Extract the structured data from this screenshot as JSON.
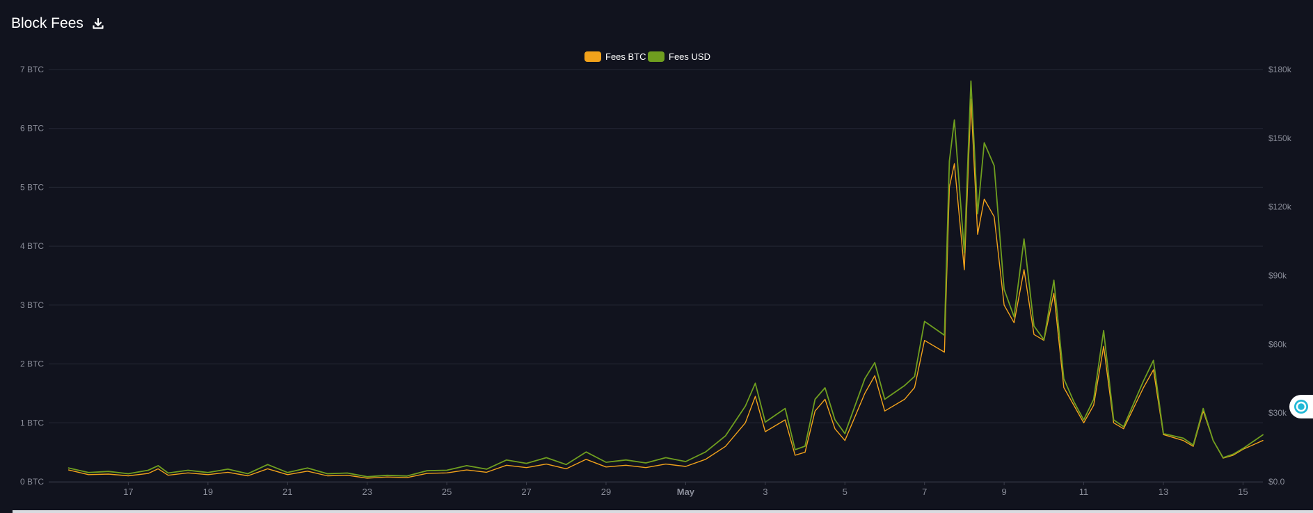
{
  "header": {
    "title": "Block Fees",
    "download_icon": "download-icon"
  },
  "widget": {
    "icon": "assistant-bubble-icon"
  },
  "chart_data": {
    "type": "line",
    "title": "Block Fees",
    "legend": {
      "placement": "top-center",
      "entries": [
        "Fees BTC",
        "Fees USD"
      ]
    },
    "colors": {
      "btc": "#f2a21b",
      "usd": "#6f9e1f",
      "background": "#11131e",
      "grid": "#252836",
      "tick_text": "#8a8d99"
    },
    "grid": true,
    "x_axis": {
      "range": [
        "2024-04-15",
        "2024-05-15"
      ],
      "tick_labels": [
        "17",
        "19",
        "21",
        "23",
        "25",
        "27",
        "29",
        "May",
        "3",
        "5",
        "7",
        "9",
        "11",
        "13",
        "15"
      ],
      "tick_dates": [
        "2024-04-17",
        "2024-04-19",
        "2024-04-21",
        "2024-04-23",
        "2024-04-25",
        "2024-04-27",
        "2024-04-29",
        "2024-05-01",
        "2024-05-03",
        "2024-05-05",
        "2024-05-07",
        "2024-05-09",
        "2024-05-11",
        "2024-05-13",
        "2024-05-15"
      ]
    },
    "y_left": {
      "range": [
        0,
        7
      ],
      "tick_labels": [
        "0 BTC",
        "1 BTC",
        "2 BTC",
        "3 BTC",
        "4 BTC",
        "5 BTC",
        "6 BTC",
        "7 BTC"
      ]
    },
    "y_right": {
      "range": [
        0,
        180000
      ],
      "tick_labels": [
        "$0.0",
        "$30k",
        "$60k",
        "$90k",
        "$120k",
        "$150k",
        "$180k"
      ]
    },
    "series": [
      {
        "name": "Fees BTC",
        "axis": "left",
        "unit": "BTC",
        "points": [
          [
            "2024-04-15 12:00",
            0.2
          ],
          [
            "2024-04-16 00:00",
            0.12
          ],
          [
            "2024-04-16 12:00",
            0.13
          ],
          [
            "2024-04-17 00:00",
            0.1
          ],
          [
            "2024-04-17 12:00",
            0.14
          ],
          [
            "2024-04-17 18:00",
            0.22
          ],
          [
            "2024-04-18 00:00",
            0.11
          ],
          [
            "2024-04-18 12:00",
            0.15
          ],
          [
            "2024-04-19 00:00",
            0.12
          ],
          [
            "2024-04-19 12:00",
            0.16
          ],
          [
            "2024-04-20 00:00",
            0.1
          ],
          [
            "2024-04-20 12:00",
            0.22
          ],
          [
            "2024-04-21 00:00",
            0.12
          ],
          [
            "2024-04-21 12:00",
            0.18
          ],
          [
            "2024-04-22 00:00",
            0.1
          ],
          [
            "2024-04-22 12:00",
            0.11
          ],
          [
            "2024-04-23 00:00",
            0.06
          ],
          [
            "2024-04-23 12:00",
            0.08
          ],
          [
            "2024-04-24 00:00",
            0.07
          ],
          [
            "2024-04-24 12:00",
            0.14
          ],
          [
            "2024-04-25 00:00",
            0.15
          ],
          [
            "2024-04-25 12:00",
            0.2
          ],
          [
            "2024-04-26 00:00",
            0.16
          ],
          [
            "2024-04-26 12:00",
            0.28
          ],
          [
            "2024-04-27 00:00",
            0.24
          ],
          [
            "2024-04-27 12:00",
            0.3
          ],
          [
            "2024-04-28 00:00",
            0.22
          ],
          [
            "2024-04-28 12:00",
            0.38
          ],
          [
            "2024-04-29 00:00",
            0.25
          ],
          [
            "2024-04-29 12:00",
            0.28
          ],
          [
            "2024-04-30 00:00",
            0.24
          ],
          [
            "2024-04-30 12:00",
            0.3
          ],
          [
            "2024-05-01 00:00",
            0.26
          ],
          [
            "2024-05-01 12:00",
            0.38
          ],
          [
            "2024-05-02 00:00",
            0.6
          ],
          [
            "2024-05-02 12:00",
            1.0
          ],
          [
            "2024-05-02 18:00",
            1.45
          ],
          [
            "2024-05-03 00:00",
            0.85
          ],
          [
            "2024-05-03 12:00",
            1.05
          ],
          [
            "2024-05-03 18:00",
            0.45
          ],
          [
            "2024-05-04 00:00",
            0.5
          ],
          [
            "2024-05-04 06:00",
            1.2
          ],
          [
            "2024-05-04 12:00",
            1.4
          ],
          [
            "2024-05-04 18:00",
            0.9
          ],
          [
            "2024-05-05 00:00",
            0.7
          ],
          [
            "2024-05-05 12:00",
            1.5
          ],
          [
            "2024-05-05 18:00",
            1.8
          ],
          [
            "2024-05-06 00:00",
            1.2
          ],
          [
            "2024-05-06 12:00",
            1.4
          ],
          [
            "2024-05-06 18:00",
            1.6
          ],
          [
            "2024-05-07 00:00",
            2.4
          ],
          [
            "2024-05-07 12:00",
            2.2
          ],
          [
            "2024-05-07 15:00",
            5.0
          ],
          [
            "2024-05-07 18:00",
            5.4
          ],
          [
            "2024-05-08 00:00",
            3.6
          ],
          [
            "2024-05-08 04:00",
            6.5
          ],
          [
            "2024-05-08 08:00",
            4.2
          ],
          [
            "2024-05-08 12:00",
            4.8
          ],
          [
            "2024-05-08 18:00",
            4.5
          ],
          [
            "2024-05-09 00:00",
            3.0
          ],
          [
            "2024-05-09 06:00",
            2.7
          ],
          [
            "2024-05-09 12:00",
            3.6
          ],
          [
            "2024-05-09 18:00",
            2.5
          ],
          [
            "2024-05-10 00:00",
            2.4
          ],
          [
            "2024-05-10 06:00",
            3.2
          ],
          [
            "2024-05-10 12:00",
            1.6
          ],
          [
            "2024-05-10 18:00",
            1.3
          ],
          [
            "2024-05-11 00:00",
            1.0
          ],
          [
            "2024-05-11 06:00",
            1.3
          ],
          [
            "2024-05-11 12:00",
            2.3
          ],
          [
            "2024-05-11 18:00",
            1.0
          ],
          [
            "2024-05-12 00:00",
            0.9
          ],
          [
            "2024-05-12 12:00",
            1.6
          ],
          [
            "2024-05-12 18:00",
            1.9
          ],
          [
            "2024-05-13 00:00",
            0.8
          ],
          [
            "2024-05-13 12:00",
            0.7
          ],
          [
            "2024-05-13 18:00",
            0.6
          ],
          [
            "2024-05-14 00:00",
            1.2
          ],
          [
            "2024-05-14 06:00",
            0.7
          ],
          [
            "2024-05-14 12:00",
            0.4
          ],
          [
            "2024-05-14 18:00",
            0.45
          ],
          [
            "2024-05-15 00:00",
            0.55
          ],
          [
            "2024-05-15 12:00",
            0.7
          ]
        ]
      },
      {
        "name": "Fees USD",
        "axis": "right",
        "unit": "USD",
        "points": [
          [
            "2024-04-15 12:00",
            6000
          ],
          [
            "2024-04-16 00:00",
            4000
          ],
          [
            "2024-04-16 12:00",
            4500
          ],
          [
            "2024-04-17 00:00",
            3500
          ],
          [
            "2024-04-17 12:00",
            5000
          ],
          [
            "2024-04-17 18:00",
            7000
          ],
          [
            "2024-04-18 00:00",
            3800
          ],
          [
            "2024-04-18 12:00",
            5000
          ],
          [
            "2024-04-19 00:00",
            4000
          ],
          [
            "2024-04-19 12:00",
            5500
          ],
          [
            "2024-04-20 00:00",
            3500
          ],
          [
            "2024-04-20 12:00",
            7500
          ],
          [
            "2024-04-21 00:00",
            4000
          ],
          [
            "2024-04-21 12:00",
            6000
          ],
          [
            "2024-04-22 00:00",
            3500
          ],
          [
            "2024-04-22 12:00",
            3800
          ],
          [
            "2024-04-23 00:00",
            2200
          ],
          [
            "2024-04-23 12:00",
            2800
          ],
          [
            "2024-04-24 00:00",
            2500
          ],
          [
            "2024-04-24 12:00",
            4800
          ],
          [
            "2024-04-25 00:00",
            5000
          ],
          [
            "2024-04-25 12:00",
            7000
          ],
          [
            "2024-04-26 00:00",
            5500
          ],
          [
            "2024-04-26 12:00",
            9500
          ],
          [
            "2024-04-27 00:00",
            8000
          ],
          [
            "2024-04-27 12:00",
            10500
          ],
          [
            "2024-04-28 00:00",
            7500
          ],
          [
            "2024-04-28 12:00",
            13000
          ],
          [
            "2024-04-29 00:00",
            8500
          ],
          [
            "2024-04-29 12:00",
            9500
          ],
          [
            "2024-04-30 00:00",
            8200
          ],
          [
            "2024-04-30 12:00",
            10500
          ],
          [
            "2024-05-01 00:00",
            8800
          ],
          [
            "2024-05-01 12:00",
            13000
          ],
          [
            "2024-05-02 00:00",
            20000
          ],
          [
            "2024-05-02 12:00",
            33000
          ],
          [
            "2024-05-02 18:00",
            43000
          ],
          [
            "2024-05-03 00:00",
            26000
          ],
          [
            "2024-05-03 12:00",
            32000
          ],
          [
            "2024-05-03 18:00",
            14000
          ],
          [
            "2024-05-04 00:00",
            15500
          ],
          [
            "2024-05-04 06:00",
            36000
          ],
          [
            "2024-05-04 12:00",
            41000
          ],
          [
            "2024-05-04 18:00",
            27000
          ],
          [
            "2024-05-05 00:00",
            21000
          ],
          [
            "2024-05-05 12:00",
            45000
          ],
          [
            "2024-05-05 18:00",
            52000
          ],
          [
            "2024-05-06 00:00",
            36000
          ],
          [
            "2024-05-06 12:00",
            42000
          ],
          [
            "2024-05-06 18:00",
            46000
          ],
          [
            "2024-05-07 00:00",
            70000
          ],
          [
            "2024-05-07 12:00",
            64000
          ],
          [
            "2024-05-07 15:00",
            140000
          ],
          [
            "2024-05-07 18:00",
            158000
          ],
          [
            "2024-05-08 00:00",
            100000
          ],
          [
            "2024-05-08 04:00",
            175000
          ],
          [
            "2024-05-08 08:00",
            117000
          ],
          [
            "2024-05-08 12:00",
            148000
          ],
          [
            "2024-05-08 18:00",
            138000
          ],
          [
            "2024-05-09 00:00",
            84000
          ],
          [
            "2024-05-09 06:00",
            72000
          ],
          [
            "2024-05-09 12:00",
            106000
          ],
          [
            "2024-05-09 18:00",
            68000
          ],
          [
            "2024-05-10 00:00",
            62000
          ],
          [
            "2024-05-10 06:00",
            88000
          ],
          [
            "2024-05-10 12:00",
            45000
          ],
          [
            "2024-05-10 18:00",
            35000
          ],
          [
            "2024-05-11 00:00",
            27000
          ],
          [
            "2024-05-11 06:00",
            36000
          ],
          [
            "2024-05-11 12:00",
            66000
          ],
          [
            "2024-05-11 18:00",
            27000
          ],
          [
            "2024-05-12 00:00",
            24000
          ],
          [
            "2024-05-12 12:00",
            44000
          ],
          [
            "2024-05-12 18:00",
            53000
          ],
          [
            "2024-05-13 00:00",
            21000
          ],
          [
            "2024-05-13 12:00",
            19000
          ],
          [
            "2024-05-13 18:00",
            16000
          ],
          [
            "2024-05-14 00:00",
            32000
          ],
          [
            "2024-05-14 06:00",
            18000
          ],
          [
            "2024-05-14 12:00",
            10500
          ],
          [
            "2024-05-14 18:00",
            12000
          ],
          [
            "2024-05-15 00:00",
            14500
          ],
          [
            "2024-05-15 12:00",
            20500
          ]
        ]
      }
    ]
  }
}
